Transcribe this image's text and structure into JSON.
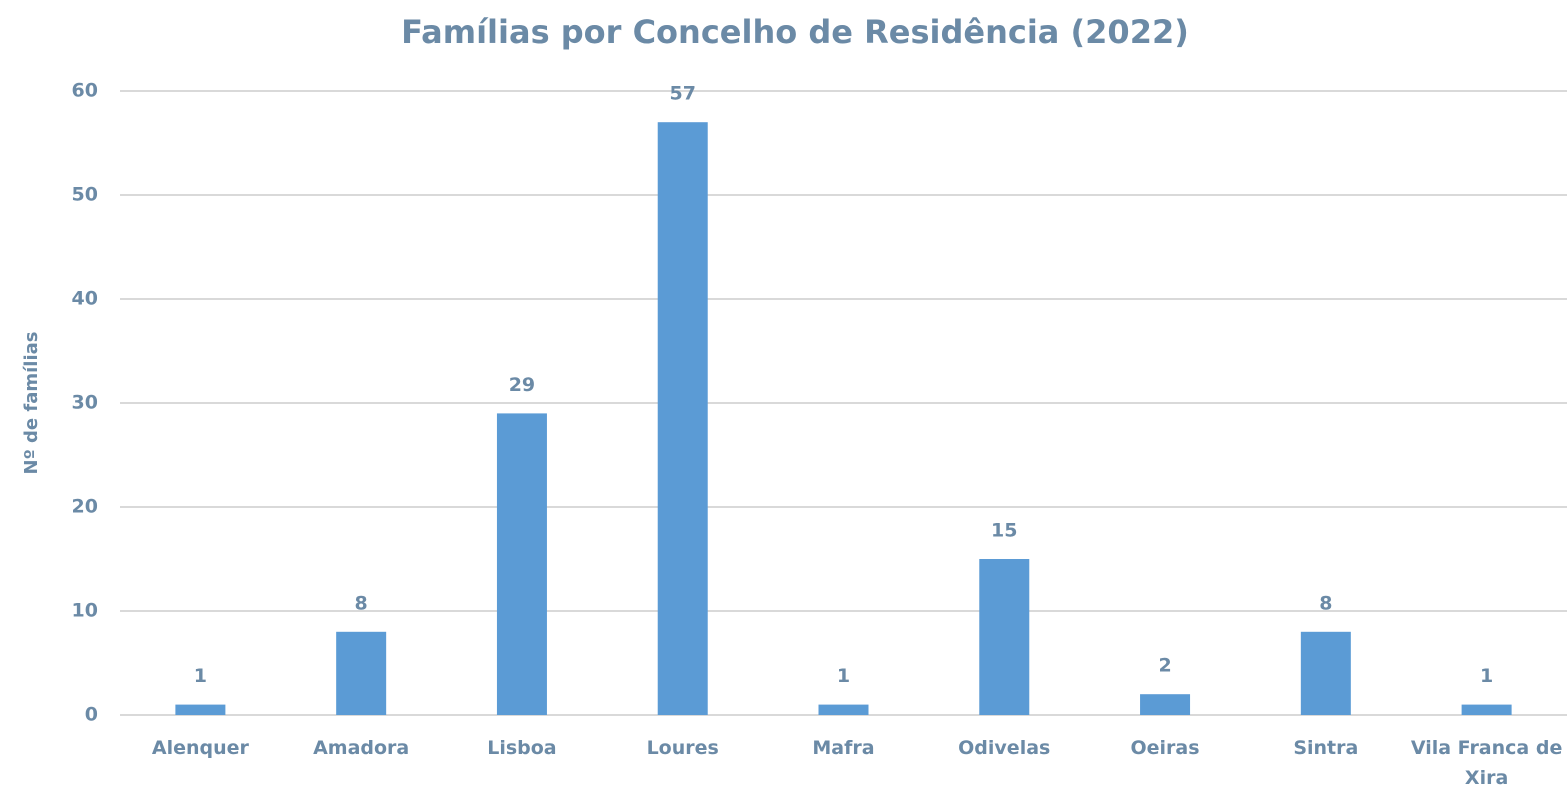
{
  "chart_data": {
    "type": "bar",
    "title": "Famílias por Concelho de Residência (2022)",
    "y_label": "Nº de famílias",
    "categories": [
      "Alenquer",
      "Amadora",
      "Lisboa",
      "Loures",
      "Mafra",
      "Odivelas",
      "Oeiras",
      "Sintra",
      "Vila Franca de Xira"
    ],
    "values": [
      1,
      8,
      29,
      57,
      1,
      15,
      2,
      8,
      1
    ],
    "color": "#5b9bd5",
    "ylim": [
      0,
      60
    ],
    "yticks": [
      0,
      10,
      20,
      30,
      40,
      50,
      60
    ],
    "grid": true,
    "data_labels": true
  }
}
